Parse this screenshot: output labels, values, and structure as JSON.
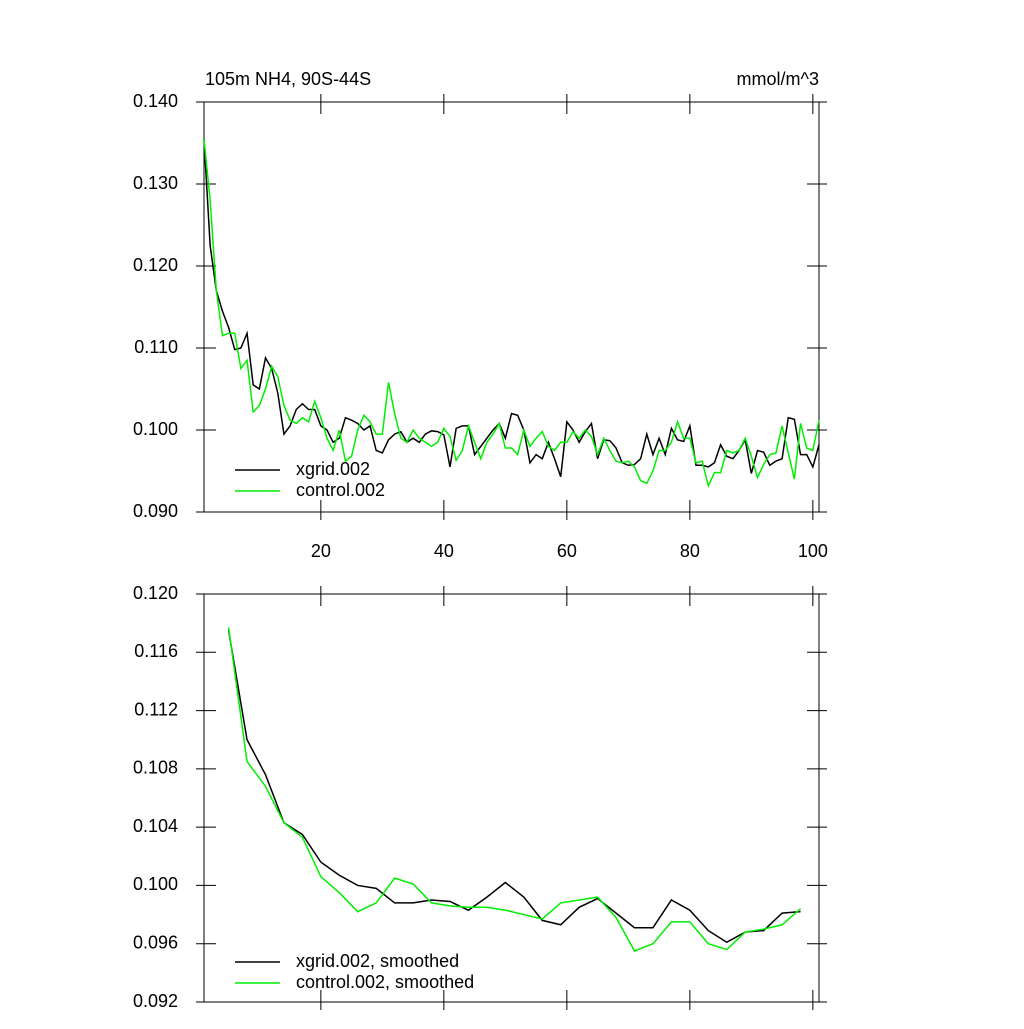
{
  "chart_data": [
    {
      "type": "line",
      "title": "105m NH4, 90S-44S",
      "subtitle": "mmol/m^3",
      "x": [
        1,
        2,
        3,
        4,
        5,
        6,
        7,
        8,
        9,
        10,
        11,
        12,
        13,
        14,
        15,
        16,
        17,
        18,
        19,
        20,
        21,
        22,
        23,
        24,
        25,
        26,
        27,
        28,
        29,
        30,
        31,
        32,
        33,
        34,
        35,
        36,
        37,
        38,
        39,
        40,
        41,
        42,
        43,
        44,
        45,
        46,
        47,
        48,
        49,
        50,
        51,
        52,
        53,
        54,
        55,
        56,
        57,
        58,
        59,
        60,
        61,
        62,
        63,
        64,
        65,
        66,
        67,
        68,
        69,
        70,
        71,
        72,
        73,
        74,
        75,
        76,
        77,
        78,
        79,
        80,
        81,
        82,
        83,
        84,
        85,
        86,
        87,
        88,
        89,
        90,
        91,
        92,
        93,
        94,
        95,
        96,
        97,
        98,
        99,
        100,
        101
      ],
      "series": [
        {
          "name": "xgrid.002",
          "color": "#000000",
          "values": [
            0.1355,
            0.1225,
            0.117,
            0.1145,
            0.1125,
            0.1098,
            0.11,
            0.1118,
            0.1055,
            0.105,
            0.1088,
            0.1075,
            0.1045,
            0.0995,
            0.1005,
            0.1025,
            0.1032,
            0.1025,
            0.1025,
            0.1005,
            0.1,
            0.0985,
            0.099,
            0.1015,
            0.1012,
            0.1008,
            0.1,
            0.1005,
            0.0975,
            0.0972,
            0.0988,
            0.0995,
            0.0998,
            0.0985,
            0.099,
            0.0985,
            0.0995,
            0.0999,
            0.0998,
            0.0994,
            0.0955,
            0.1002,
            0.1005,
            0.1005,
            0.097,
            0.098,
            0.099,
            0.1,
            0.1008,
            0.099,
            0.102,
            0.1018,
            0.1,
            0.096,
            0.097,
            0.0965,
            0.0985,
            0.0965,
            0.0943,
            0.101,
            0.1,
            0.0985,
            0.0998,
            0.1008,
            0.0965,
            0.0988,
            0.0987,
            0.0978,
            0.096,
            0.0957,
            0.0958,
            0.0965,
            0.0995,
            0.097,
            0.099,
            0.097,
            0.1002,
            0.0988,
            0.0986,
            0.1005,
            0.0957,
            0.0957,
            0.0955,
            0.096,
            0.0982,
            0.0968,
            0.0965,
            0.0975,
            0.0988,
            0.0947,
            0.0975,
            0.0973,
            0.0957,
            0.0962,
            0.0965,
            0.1015,
            0.1013,
            0.097,
            0.097,
            0.0955,
            0.0982
          ]
        },
        {
          "name": "control.002",
          "color": "#00ee00",
          "values": [
            0.1355,
            0.128,
            0.117,
            0.1115,
            0.1118,
            0.1118,
            0.1075,
            0.1085,
            0.1022,
            0.103,
            0.105,
            0.1078,
            0.1065,
            0.103,
            0.1012,
            0.1008,
            0.1015,
            0.101,
            0.1035,
            0.1015,
            0.099,
            0.0975,
            0.1,
            0.0962,
            0.0968,
            0.1,
            0.1018,
            0.101,
            0.0995,
            0.0995,
            0.1058,
            0.102,
            0.099,
            0.0985,
            0.1,
            0.099,
            0.0985,
            0.098,
            0.0985,
            0.1002,
            0.0992,
            0.0963,
            0.0975,
            0.1005,
            0.0985,
            0.0965,
            0.0985,
            0.0995,
            0.1008,
            0.0978,
            0.0978,
            0.097,
            0.1,
            0.098,
            0.099,
            0.0998,
            0.098,
            0.0975,
            0.0985,
            0.0985,
            0.0998,
            0.099,
            0.1,
            0.0992,
            0.097,
            0.099,
            0.0975,
            0.0962,
            0.096,
            0.0962,
            0.0955,
            0.0938,
            0.0935,
            0.095,
            0.0975,
            0.0975,
            0.0985,
            0.101,
            0.099,
            0.099,
            0.096,
            0.0962,
            0.0932,
            0.0948,
            0.0948,
            0.0975,
            0.0972,
            0.0975,
            0.099,
            0.0968,
            0.0942,
            0.0958,
            0.097,
            0.0972,
            0.1005,
            0.0972,
            0.094,
            0.1008,
            0.0978,
            0.0975,
            0.1012
          ]
        }
      ],
      "xlim": [
        1,
        101
      ],
      "xticks": [
        20,
        40,
        60,
        80,
        100
      ],
      "ylim": [
        0.09,
        0.14
      ],
      "yticks": [
        {
          "value": 0.09,
          "label": "0.090"
        },
        {
          "value": 0.1,
          "label": "0.100"
        },
        {
          "value": 0.11,
          "label": "0.110"
        },
        {
          "value": 0.12,
          "label": "0.120"
        },
        {
          "value": 0.13,
          "label": "0.130"
        },
        {
          "value": 0.14,
          "label": "0.140"
        }
      ],
      "legend": "lower-left"
    },
    {
      "type": "line",
      "x": [
        5,
        8,
        11,
        14,
        17,
        20,
        23,
        26,
        29,
        32,
        35,
        38,
        41,
        44,
        47,
        50,
        53,
        56,
        59,
        62,
        65,
        68,
        71,
        74,
        77,
        80,
        83,
        86,
        89,
        92,
        95,
        98
      ],
      "series": [
        {
          "name": "xgrid.002, smoothed",
          "color": "#000000",
          "values": [
            0.1175,
            0.11,
            0.1076,
            0.1043,
            0.1035,
            0.1016,
            0.1007,
            0.1,
            0.0998,
            0.0988,
            0.0988,
            0.099,
            0.0989,
            0.0983,
            0.0992,
            0.1002,
            0.0992,
            0.0976,
            0.0973,
            0.0985,
            0.0991,
            0.0981,
            0.0971,
            0.0971,
            0.099,
            0.0983,
            0.0969,
            0.0961,
            0.0968,
            0.0969,
            0.0981,
            0.0982
          ]
        },
        {
          "name": "control.002, smoothed",
          "color": "#00ee00",
          "values": [
            0.1177,
            0.1085,
            0.1068,
            0.1043,
            0.1033,
            0.1006,
            0.0995,
            0.0982,
            0.0988,
            0.1005,
            0.1001,
            0.0988,
            0.0986,
            0.0985,
            0.0985,
            0.0983,
            0.098,
            0.0977,
            0.0988,
            0.099,
            0.0992,
            0.0978,
            0.0955,
            0.096,
            0.0975,
            0.0975,
            0.096,
            0.0956,
            0.0968,
            0.097,
            0.0973,
            0.0984
          ]
        }
      ],
      "xlim": [
        1,
        101
      ],
      "xticks": [
        20,
        40,
        60,
        80,
        100
      ],
      "ylim": [
        0.092,
        0.12
      ],
      "yticks": [
        0.092,
        0.096,
        {
          "value": 0.1,
          "label": "0.100"
        },
        0.104,
        0.108,
        0.112,
        0.116,
        {
          "value": 0.12,
          "label": "0.120"
        }
      ],
      "legend": "lower-left"
    }
  ]
}
